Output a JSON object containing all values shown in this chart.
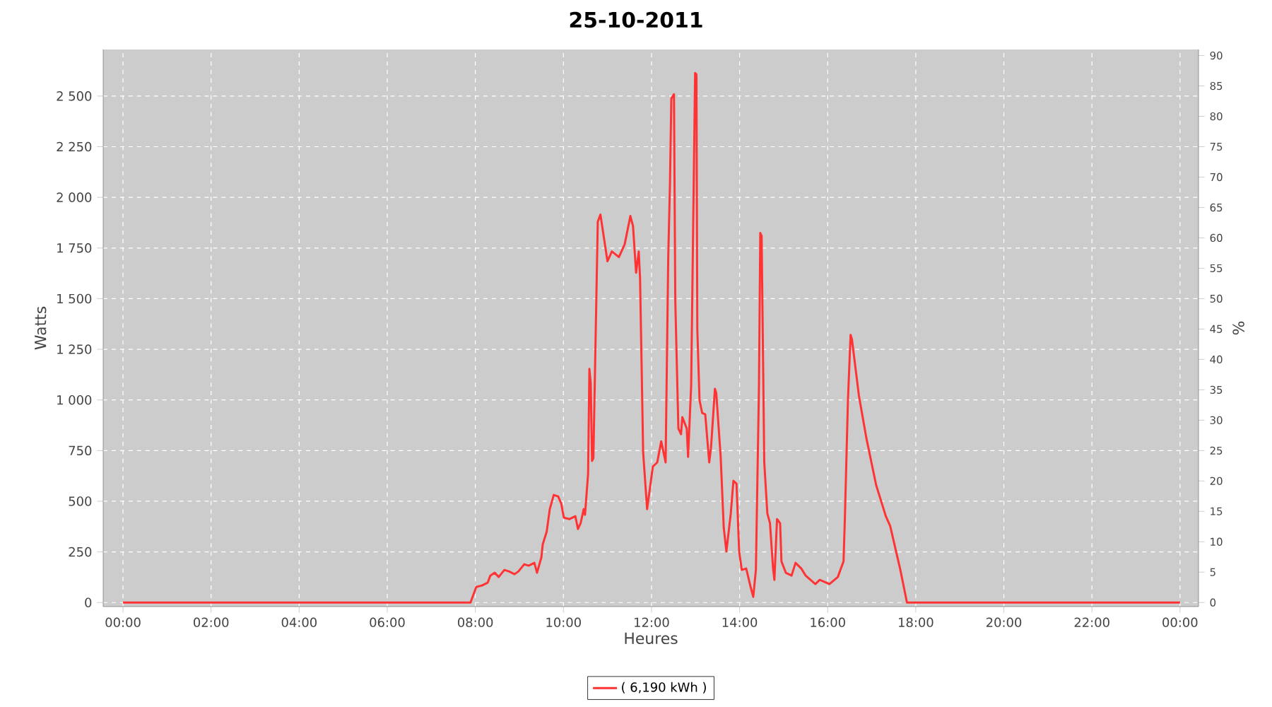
{
  "chart_data": {
    "type": "line",
    "title": "25-10-2011",
    "xlabel": "Heures",
    "ylabel": "Watts",
    "y2label": "%",
    "xlim": [
      -0.45,
      24.42
    ],
    "ylim": [
      -20,
      2730
    ],
    "y2lim": [
      -0.67,
      91.0
    ],
    "xticks": [
      {
        "value": 0,
        "label": "00:00"
      },
      {
        "value": 2,
        "label": "02:00"
      },
      {
        "value": 4,
        "label": "04:00"
      },
      {
        "value": 6,
        "label": "06:00"
      },
      {
        "value": 8,
        "label": "08:00"
      },
      {
        "value": 10,
        "label": "10:00"
      },
      {
        "value": 12,
        "label": "12:00"
      },
      {
        "value": 14,
        "label": "14:00"
      },
      {
        "value": 16,
        "label": "16:00"
      },
      {
        "value": 18,
        "label": "18:00"
      },
      {
        "value": 20,
        "label": "20:00"
      },
      {
        "value": 22,
        "label": "22:00"
      },
      {
        "value": 24,
        "label": "00:00"
      }
    ],
    "yticks": [
      0,
      250,
      500,
      750,
      {
        "value": 1000,
        "label": "1 000"
      },
      {
        "value": 1250,
        "label": "1 250"
      },
      {
        "value": 1500,
        "label": "1 500"
      },
      {
        "value": 1750,
        "label": "1 750"
      },
      {
        "value": 2000,
        "label": "2 000"
      },
      {
        "value": 2250,
        "label": "2 250"
      },
      {
        "value": 2500,
        "label": "2 500"
      }
    ],
    "y2ticks": [
      0,
      5,
      10,
      15,
      20,
      25,
      30,
      35,
      40,
      45,
      50,
      55,
      60,
      65,
      70,
      75,
      80,
      85,
      90
    ],
    "grid": true,
    "legend": "bottom",
    "series": [
      {
        "name": "( 6,190 kWh )",
        "color": "#ff3333",
        "x": [
          0,
          7.89,
          8.02,
          8.15,
          8.28,
          8.34,
          8.44,
          8.53,
          8.66,
          8.76,
          8.89,
          8.98,
          9.11,
          9.21,
          9.34,
          9.4,
          9.5,
          9.53,
          9.62,
          9.69,
          9.78,
          9.88,
          9.95,
          10.01,
          10.14,
          10.27,
          10.33,
          10.39,
          10.46,
          10.49,
          10.56,
          10.59,
          10.62,
          10.65,
          10.68,
          10.78,
          10.84,
          11.0,
          11.1,
          11.26,
          11.39,
          11.52,
          11.58,
          11.65,
          11.71,
          11.74,
          11.81,
          11.9,
          12.03,
          12.13,
          12.22,
          12.32,
          12.38,
          12.42,
          12.45,
          12.51,
          12.54,
          12.61,
          12.67,
          12.7,
          12.8,
          12.83,
          12.9,
          12.99,
          13.02,
          13.04,
          13.09,
          13.15,
          13.22,
          13.31,
          13.35,
          13.44,
          13.47,
          13.57,
          13.64,
          13.7,
          13.8,
          13.86,
          13.93,
          13.99,
          14.05,
          14.15,
          14.25,
          14.31,
          14.37,
          14.44,
          14.47,
          14.5,
          14.56,
          14.63,
          14.69,
          14.76,
          14.79,
          14.85,
          14.92,
          14.95,
          15.05,
          15.18,
          15.27,
          15.4,
          15.5,
          15.72,
          15.82,
          16.04,
          16.23,
          16.36,
          16.39,
          16.46,
          16.52,
          16.55,
          16.71,
          16.88,
          17.1,
          17.32,
          17.42,
          17.65,
          17.8,
          24.0
        ],
        "values": [
          0,
          0,
          77,
          84,
          98,
          133,
          147,
          126,
          161,
          154,
          140,
          154,
          189,
          182,
          196,
          147,
          224,
          287,
          350,
          461,
          531,
          524,
          489,
          419,
          412,
          426,
          363,
          391,
          461,
          433,
          636,
          1153,
          1083,
          699,
          713,
          1880,
          1915,
          1685,
          1733,
          1705,
          1768,
          1908,
          1859,
          1628,
          1733,
          1600,
          741,
          461,
          671,
          692,
          796,
          692,
          1705,
          2075,
          2488,
          2509,
          1489,
          859,
          831,
          915,
          859,
          719,
          1069,
          2614,
          2607,
          1349,
          999,
          936,
          929,
          692,
          761,
          1055,
          1034,
          720,
          370,
          252,
          440,
          601,
          587,
          252,
          161,
          168,
          77,
          28,
          161,
          1069,
          1824,
          1810,
          692,
          440,
          391,
          168,
          112,
          412,
          391,
          203,
          147,
          133,
          196,
          168,
          133,
          91,
          112,
          91,
          126,
          203,
          412,
          999,
          1321,
          1300,
          1020,
          810,
          580,
          426,
          377,
          161,
          0,
          0
        ]
      }
    ]
  }
}
